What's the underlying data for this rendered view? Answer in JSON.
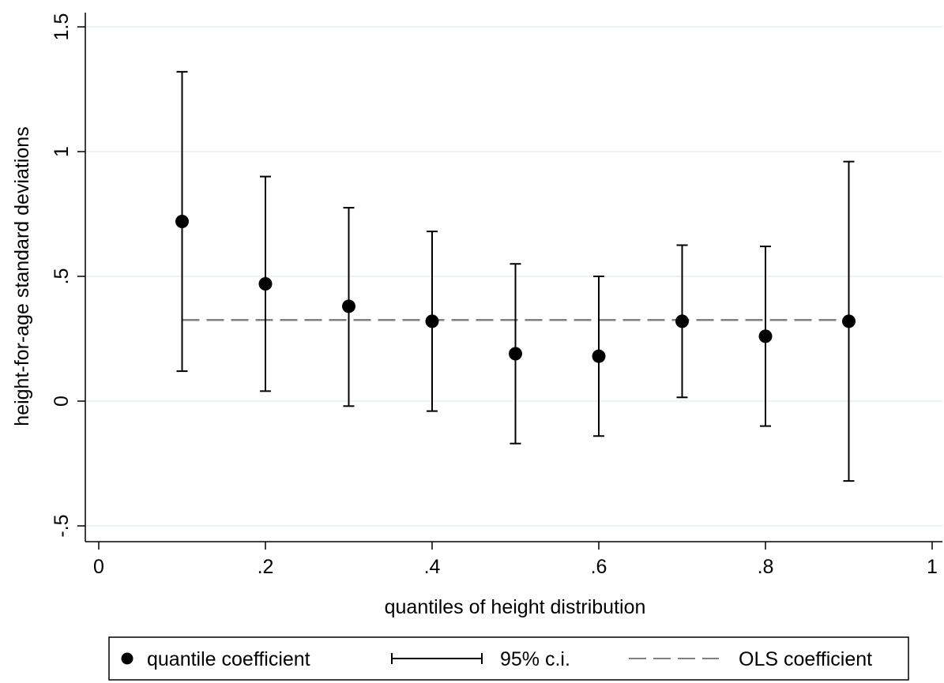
{
  "chart_data": {
    "type": "scatter",
    "xlabel": "quantiles of height distribution",
    "ylabel": "height-for-age standard deviations",
    "xlim": [
      0,
      1
    ],
    "ylim": [
      -0.55,
      1.5
    ],
    "x_ticks": [
      0,
      0.2,
      0.4,
      0.6,
      0.8,
      1
    ],
    "x_tick_labels": [
      "0",
      ".2",
      ".4",
      ".6",
      ".8",
      "1"
    ],
    "y_ticks": [
      -0.5,
      0,
      0.5,
      1,
      1.5
    ],
    "y_tick_labels": [
      "-.5",
      "0",
      ".5",
      "1",
      "1.5"
    ],
    "grid": "horizontal",
    "legend_position": "bottom",
    "colors": {
      "points": "#000000",
      "ci": "#000000",
      "ols": "#808080",
      "grid": "#e8eeee"
    },
    "series": [
      {
        "name": "quantile coefficient",
        "x": [
          0.1,
          0.2,
          0.3,
          0.4,
          0.5,
          0.6,
          0.7,
          0.8,
          0.9
        ],
        "values": [
          0.72,
          0.47,
          0.38,
          0.32,
          0.19,
          0.18,
          0.32,
          0.26,
          0.32
        ]
      },
      {
        "name": "95% c.i.",
        "x": [
          0.1,
          0.2,
          0.3,
          0.4,
          0.5,
          0.6,
          0.7,
          0.8,
          0.9
        ],
        "lower": [
          0.12,
          0.04,
          -0.02,
          -0.04,
          -0.17,
          -0.14,
          0.015,
          -0.1,
          -0.32
        ],
        "upper": [
          1.32,
          0.9,
          0.775,
          0.68,
          0.55,
          0.5,
          0.625,
          0.62,
          0.96
        ]
      },
      {
        "name": "OLS coefficient",
        "x": [
          0.1,
          0.9
        ],
        "values": [
          0.325,
          0.325
        ]
      }
    ]
  }
}
